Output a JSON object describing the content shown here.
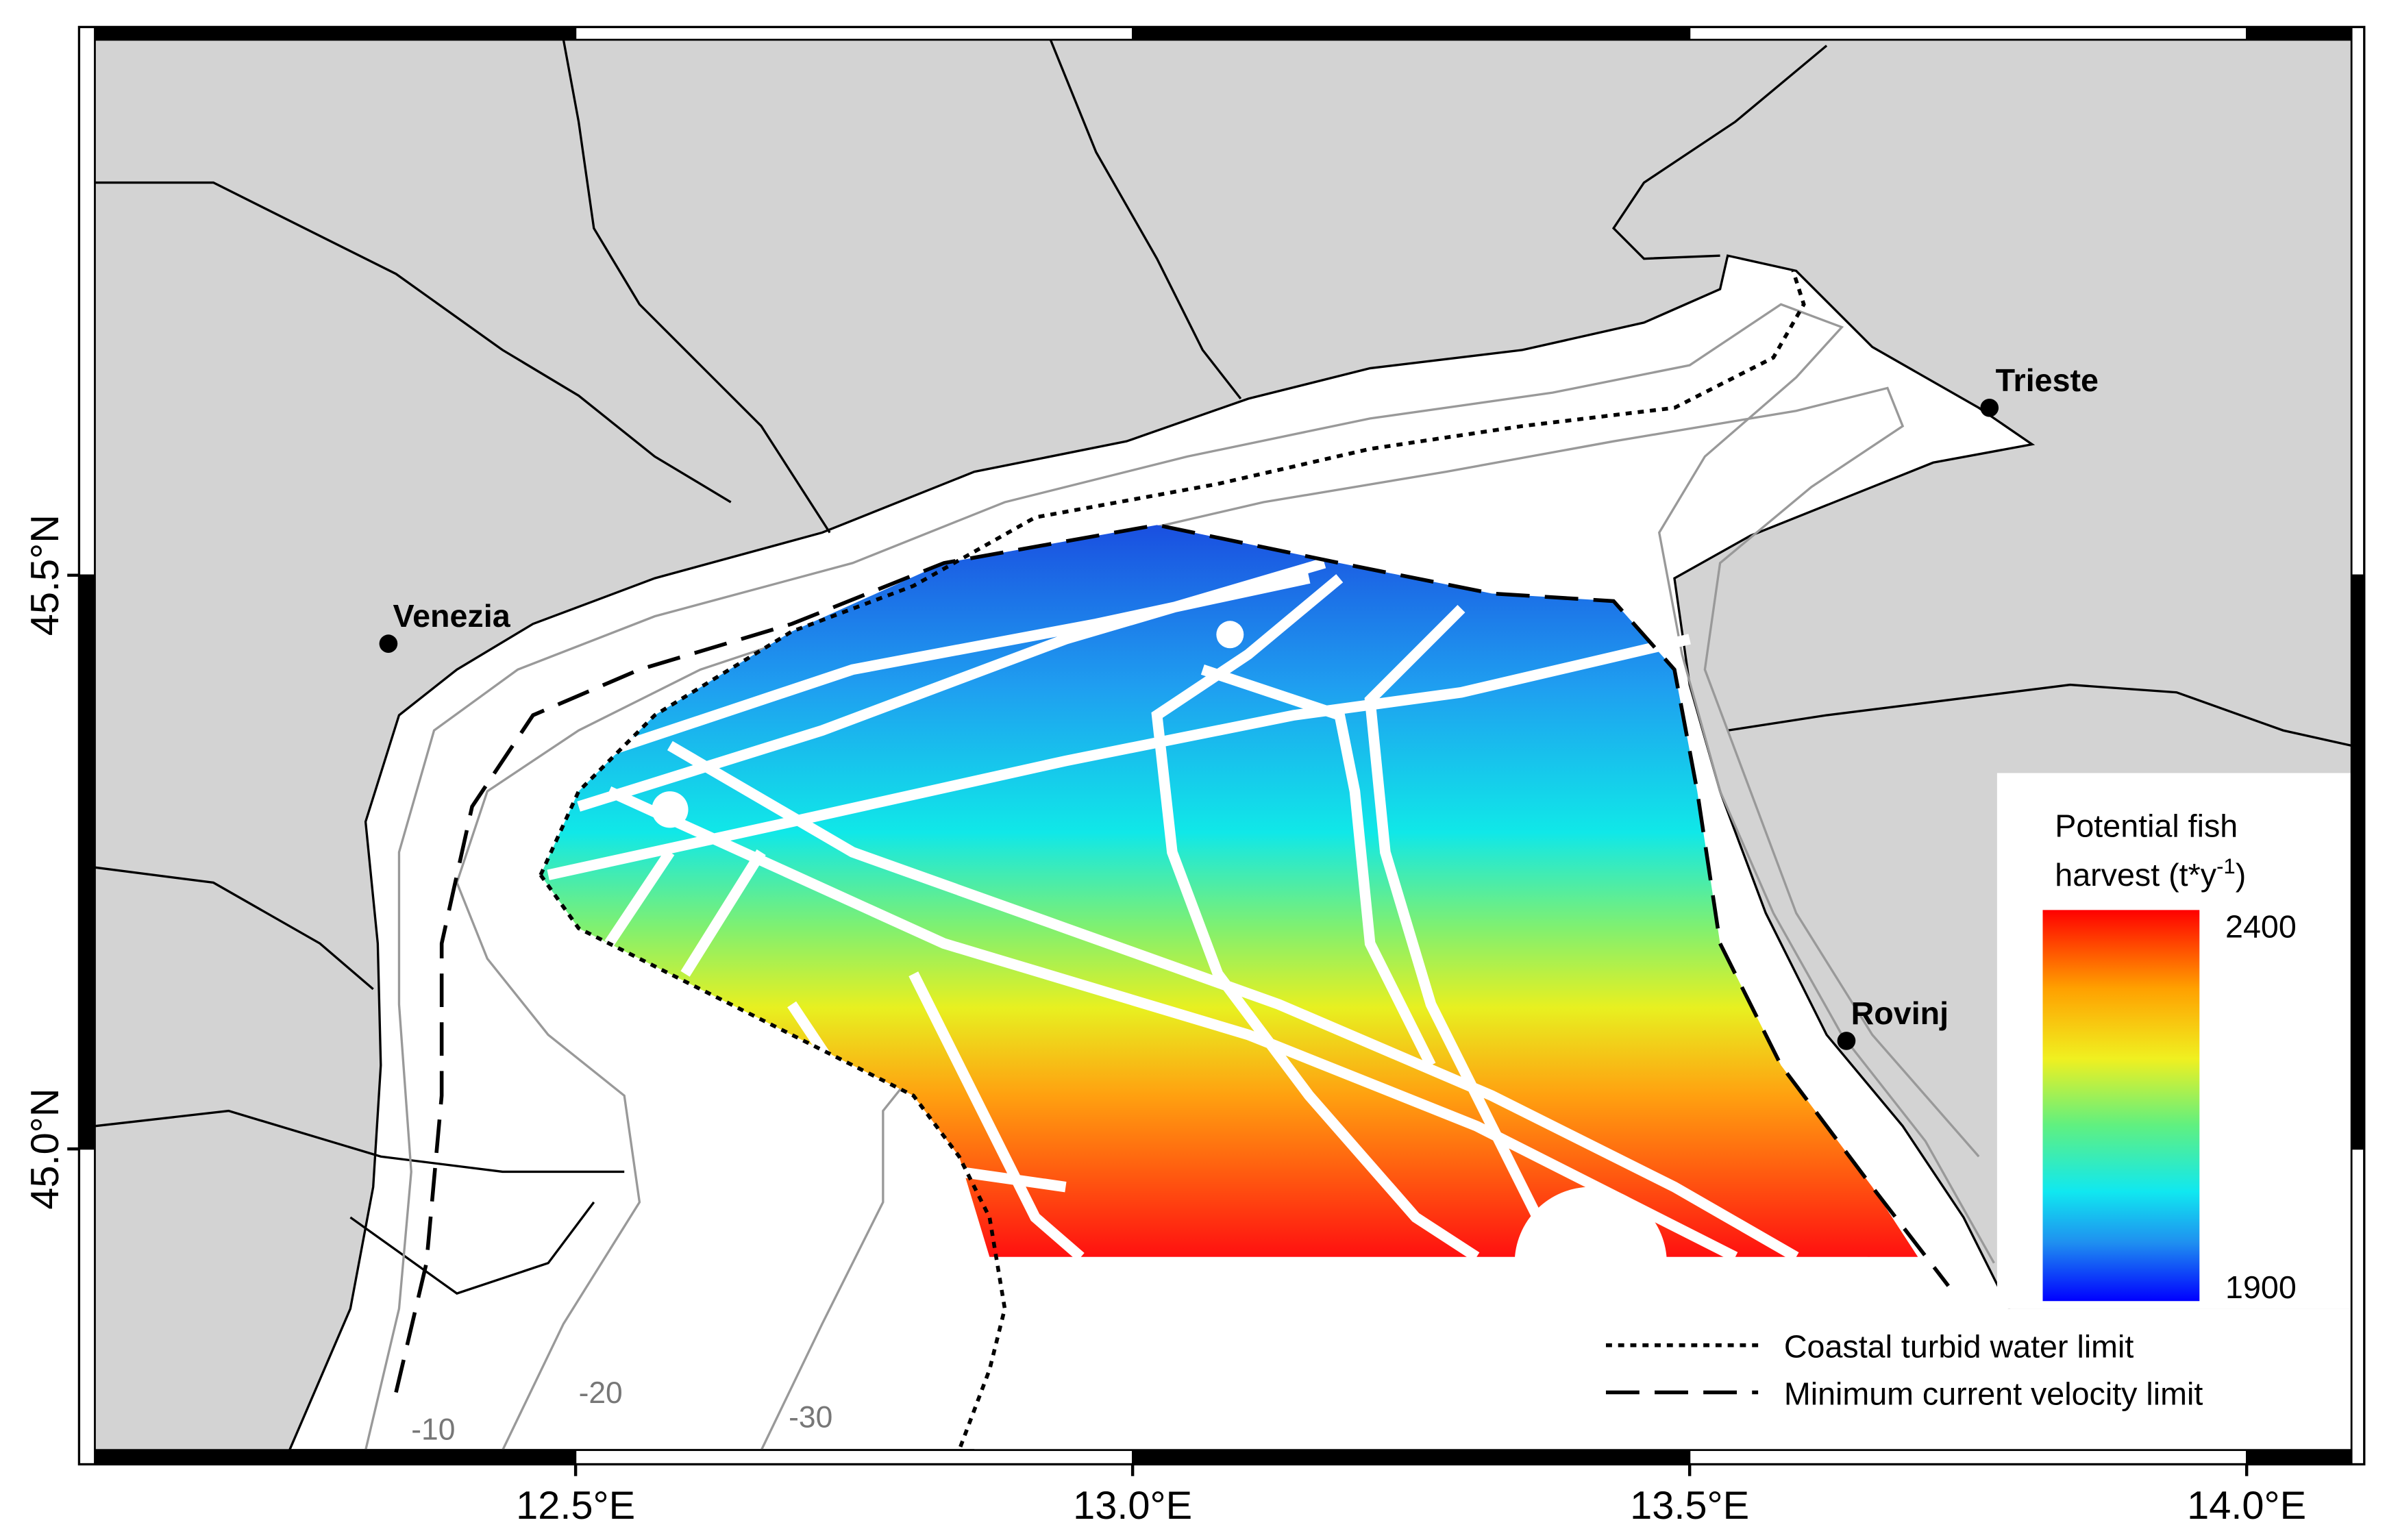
{
  "map": {
    "x_ticks": [
      {
        "value": 12.5,
        "label": "12.5°E"
      },
      {
        "value": 13.0,
        "label": "13.0°E"
      },
      {
        "value": 13.5,
        "label": "13.5°E"
      },
      {
        "value": 14.0,
        "label": "14.0°E"
      }
    ],
    "y_ticks": [
      {
        "value": 45.5,
        "label": "45.5°N"
      },
      {
        "value": 45.0,
        "label": "45.0°N"
      }
    ],
    "places": [
      "Venezia",
      "Trieste",
      "Rovinj"
    ],
    "contour_labels": [
      "-10",
      "-20",
      "-30"
    ],
    "colorbar": {
      "title": [
        "Potential fish",
        "harvest (t*y",
        ")"
      ],
      "superscript": "-1",
      "max": 2400,
      "min": 1900
    },
    "line_legend": [
      "Coastal turbid water limit",
      "Minimum current velocity limit"
    ]
  }
}
